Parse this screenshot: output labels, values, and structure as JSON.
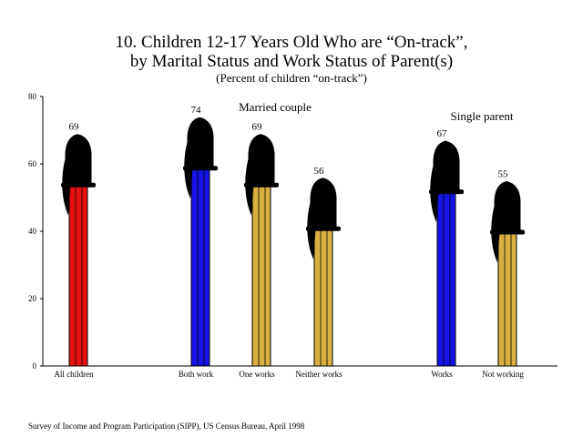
{
  "title_line1": "10. Children 12-17 Years Old Who are “On-track”,",
  "title_line2": "by Marital Status and Work Status of Parent(s)",
  "subtitle": "(Percent of children “on-track”)",
  "source": "Survey of Income and Program Participation (SIPP),  US Census Bureau, April 1998",
  "chart_data": {
    "type": "bar",
    "bar_style": "marker pens (capped)",
    "categories": [
      "All children",
      "Both work",
      "One works",
      "Neither works",
      "Works",
      "Not working"
    ],
    "values": [
      69,
      74,
      69,
      56,
      67,
      55
    ],
    "data_labels": [
      "69",
      "74",
      "69",
      "56",
      "67",
      "55"
    ],
    "bar_colors": [
      "#e81010",
      "#1414e6",
      "#d9b040",
      "#d9b040",
      "#1414e6",
      "#d9b040"
    ],
    "cap_color": "#000000",
    "ylim": [
      0,
      80
    ],
    "yticks": [
      0,
      20,
      40,
      60,
      80
    ],
    "ytick_labels": [
      "0",
      "20",
      "40",
      "60",
      "80"
    ],
    "group_labels": [
      {
        "text": "Married couple",
        "categories": [
          "Both work",
          "One works",
          "Neither works"
        ]
      },
      {
        "text": "Single parent",
        "categories": [
          "Works",
          "Not working"
        ]
      }
    ],
    "xlabel": "",
    "ylabel": "",
    "grid": false,
    "legend": "none"
  }
}
